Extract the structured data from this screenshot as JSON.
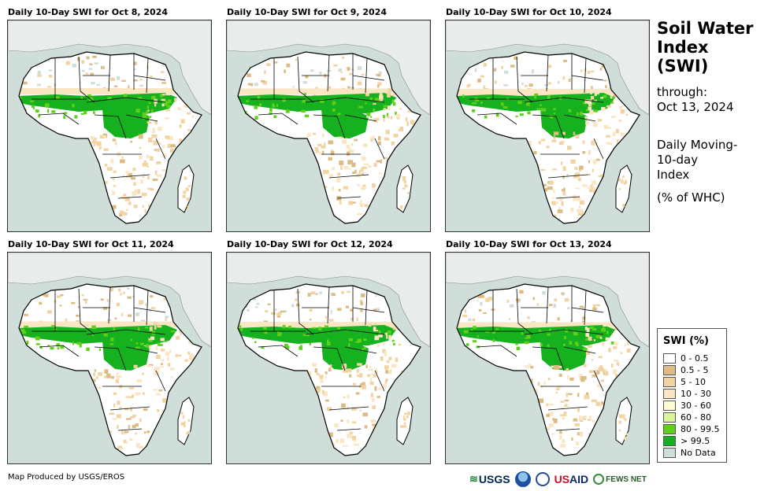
{
  "panels": [
    {
      "title": "Daily 10-Day SWI for Oct 8, 2024"
    },
    {
      "title": "Daily 10-Day SWI for Oct 9, 2024"
    },
    {
      "title": "Daily 10-Day SWI for Oct 10, 2024"
    },
    {
      "title": "Daily 10-Day SWI for Oct 11, 2024"
    },
    {
      "title": "Daily 10-Day SWI for Oct 12, 2024"
    },
    {
      "title": "Daily 10-Day SWI for Oct 13, 2024"
    }
  ],
  "side": {
    "title_line1": "Soil Water",
    "title_line2": "Index",
    "title_line3": "(SWI)",
    "through_label": "through:",
    "through_date": "Oct 13, 2024",
    "desc_line1": "Daily Moving-",
    "desc_line2": "10-day",
    "desc_line3": "Index",
    "units": "(% of WHC)"
  },
  "legend": {
    "title": "SWI (%)",
    "items": [
      {
        "label": "0 - 0.5",
        "color": "#ffffff"
      },
      {
        "label": "0.5 - 5",
        "color": "#dcbc84"
      },
      {
        "label": "5 - 10",
        "color": "#f2d3a2"
      },
      {
        "label": "10 - 30",
        "color": "#fbe6c4"
      },
      {
        "label": "30 - 60",
        "color": "#fdfcd2"
      },
      {
        "label": "60 - 80",
        "color": "#d9f59a"
      },
      {
        "label": "80 - 99.5",
        "color": "#5fd01a"
      },
      {
        "label": "> 99.5",
        "color": "#16b11e"
      },
      {
        "label": "No Data",
        "color": "#cfded9"
      }
    ]
  },
  "colors": {
    "ocean": "#cfded9",
    "land_other": "#e8eceb",
    "africa_base": "#ffffff",
    "tan": "#f2d3a2",
    "tan_dark": "#dcbc84",
    "green_bright": "#5fd01a",
    "green_dark": "#16b11e"
  },
  "footer": {
    "credit": "Map Produced by USGS/EROS"
  },
  "logos": {
    "usgs": "USGS",
    "usaid_us": "US",
    "usaid_aid": "AID",
    "fews": "FEWS NET"
  }
}
